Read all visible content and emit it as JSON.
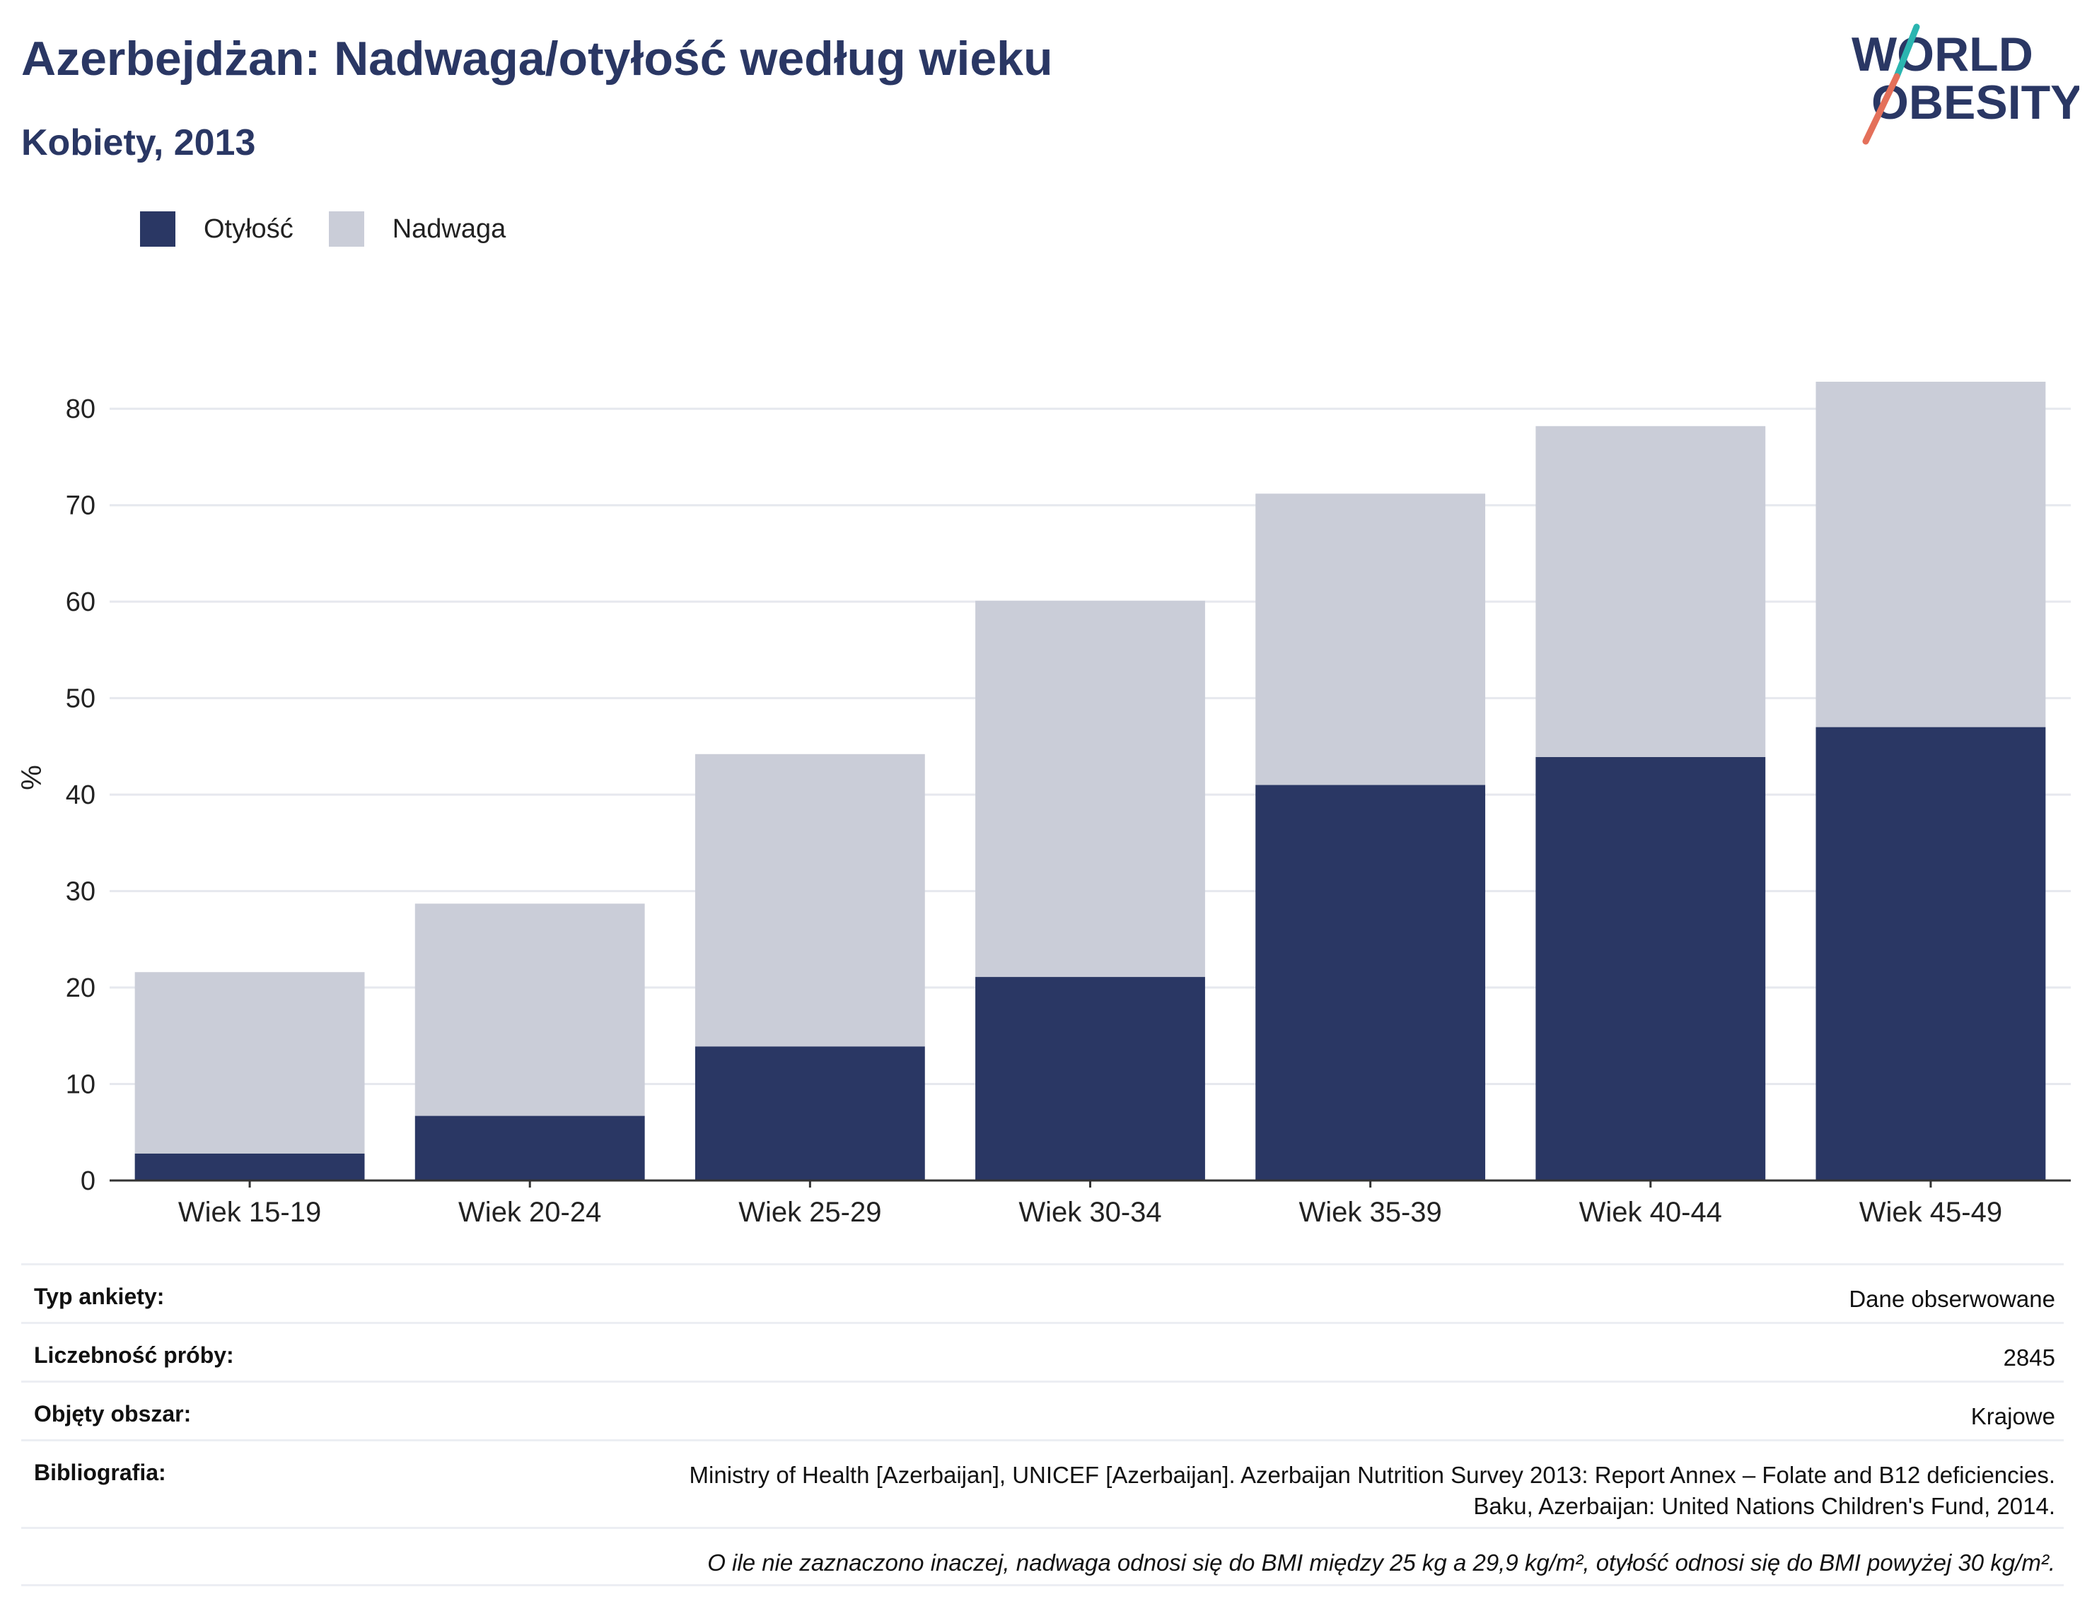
{
  "header": {
    "title": "Azerbejdżan: Nadwaga/otyłość według wieku",
    "subtitle": "Kobiety, 2013"
  },
  "logo": {
    "line1": "WORLD",
    "line2": "OBESITY"
  },
  "legend": [
    {
      "label": "Otyłość",
      "color": "#2a3764"
    },
    {
      "label": "Nadwaga",
      "color": "#cacdd8"
    }
  ],
  "chart_data": {
    "type": "bar",
    "stacked": true,
    "categories": [
      "Wiek 15-19",
      "Wiek 20-24",
      "Wiek 25-29",
      "Wiek 30-34",
      "Wiek 35-39",
      "Wiek 40-44",
      "Wiek 45-49"
    ],
    "series": [
      {
        "name": "Otyłość",
        "color": "#2a3764",
        "values": [
          2.8,
          6.7,
          13.9,
          21.1,
          41.0,
          43.9,
          47.0
        ]
      },
      {
        "name": "Nadwaga",
        "color": "#cacdd8",
        "values": [
          18.8,
          22.0,
          30.3,
          39.0,
          30.2,
          34.3,
          35.8
        ]
      }
    ],
    "ylabel": "%",
    "ylim": [
      0,
      85
    ],
    "yticks": [
      0,
      10,
      20,
      30,
      40,
      50,
      60,
      70,
      80
    ],
    "grid": true,
    "legend_position": "top-left"
  },
  "info": {
    "survey_type_label": "Typ ankiety:",
    "survey_type_value": "Dane obserwowane",
    "sample_size_label": "Liczebność próby:",
    "sample_size_value": "2845",
    "area_label": "Objęty obszar:",
    "area_value": "Krajowe",
    "bibliography_label": "Bibliografia:",
    "bibliography_line1": "Ministry of Health [Azerbaijan], UNICEF [Azerbaijan]. Azerbaijan Nutrition Survey 2013: Report Annex – Folate and B12 deficiencies.",
    "bibliography_line2": "Baku, Azerbaijan: United Nations Children's Fund, 2014.",
    "note": "O ile nie zaznaczono inaczej, nadwaga odnosi się do BMI między 25 kg a 29,9 kg/m², otyłość odnosi się do BMI powyżej 30 kg/m²."
  }
}
